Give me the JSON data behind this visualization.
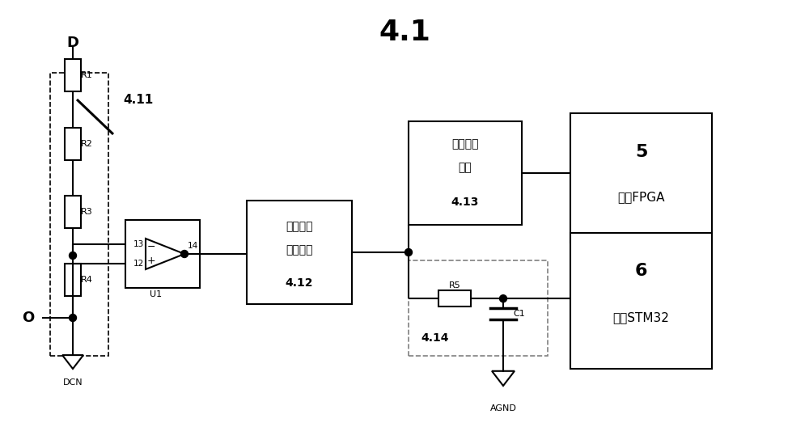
{
  "title": "4.1",
  "title_fontsize": 26,
  "bg_color": "#ffffff",
  "line_color": "#000000",
  "fig_width": 10.0,
  "fig_height": 5.28,
  "labels": {
    "D": "D",
    "O": "O",
    "DCN": "DCN",
    "AGND": "AGND",
    "R1": "R1",
    "R2": "R2",
    "R3": "R3",
    "R4": "R4",
    "R5": "R5",
    "C1": "C1",
    "U1": "U1",
    "pin13": "13",
    "pin12": "12",
    "pin14": "14",
    "label411": "4.11",
    "box412_line1": "线性光耦",
    "box412_line2": "隔离电路",
    "box412_label": "4.12",
    "box413_line1": "滨环比较",
    "box413_line2": "电路",
    "box413_label": "4.13",
    "box5_num": "5",
    "box5_text": "单元FPGA",
    "box6_num": "6",
    "box6_text": "单元STM32",
    "box414_label": "4.14"
  }
}
